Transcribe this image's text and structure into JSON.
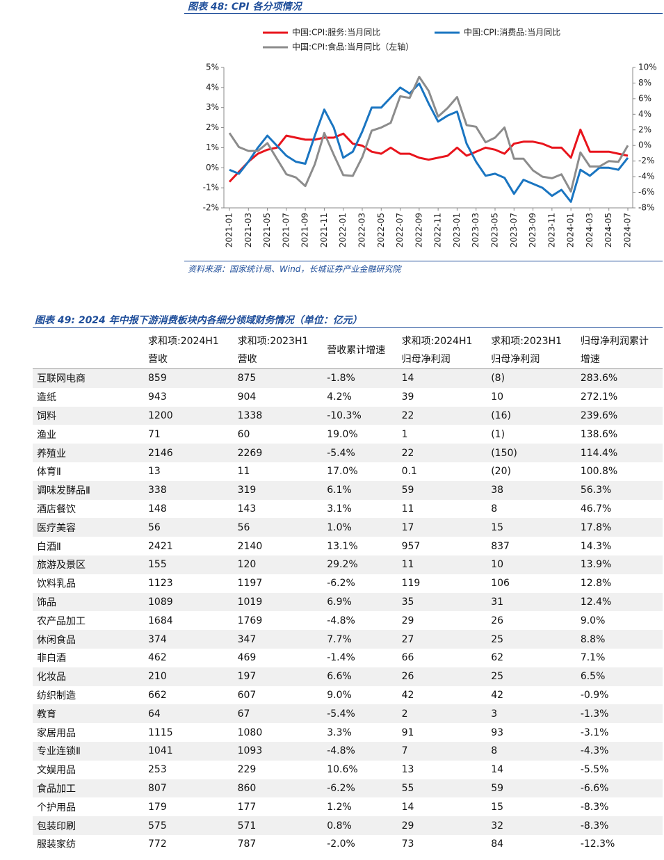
{
  "figure48_title": "图表 48:  CPI 各分项情况",
  "chart_data": {
    "type": "line",
    "categories": [
      "2021-01",
      null,
      "2021-03",
      null,
      "2021-05",
      null,
      "2021-07",
      null,
      "2021-09",
      null,
      "2021-11",
      null,
      "2022-01",
      null,
      "2022-03",
      null,
      "2022-05",
      null,
      "2022-07",
      null,
      "2022-09",
      null,
      "2022-11",
      null,
      "2023-01",
      null,
      "2023-03",
      null,
      "2023-05",
      null,
      "2023-07",
      null,
      "2023-09",
      null,
      "2023-11",
      null,
      "2024-01",
      null,
      "2024-03",
      null,
      "2024-05",
      null,
      "2024-07"
    ],
    "series": [
      {
        "name": "中国:CPI:服务:当月同比",
        "color": "#e8141c",
        "axis": "y",
        "values": [
          -0.7,
          -0.2,
          0.3,
          0.7,
          0.9,
          1.0,
          1.6,
          1.5,
          1.4,
          1.4,
          1.5,
          1.5,
          1.7,
          1.2,
          1.1,
          0.8,
          0.7,
          1.0,
          0.7,
          0.7,
          0.5,
          0.4,
          0.5,
          0.6,
          1.0,
          0.6,
          0.8,
          1.0,
          0.9,
          0.7,
          1.2,
          1.3,
          1.3,
          1.2,
          1.0,
          1.0,
          0.5,
          1.9,
          0.8,
          0.8,
          0.8,
          0.7,
          0.6
        ]
      },
      {
        "name": "中国:CPI:消费品:当月同比",
        "color": "#1a75c1",
        "axis": "y",
        "values": [
          -0.1,
          -0.3,
          0.3,
          1.0,
          1.6,
          1.1,
          0.6,
          0.3,
          0.2,
          1.6,
          2.9,
          2.0,
          0.5,
          0.8,
          1.8,
          3.0,
          3.0,
          3.5,
          4.0,
          3.7,
          4.2,
          3.2,
          2.3,
          2.6,
          2.8,
          1.2,
          0.3,
          -0.4,
          -0.3,
          -0.5,
          -1.3,
          -0.6,
          -0.8,
          -1.0,
          -1.4,
          -1.1,
          -1.7,
          -0.1,
          -0.4,
          0.0,
          0.0,
          -0.1,
          0.5
        ]
      },
      {
        "name": "中国:CPI:食品:当月同比（左轴）",
        "color": "#8c8c8c",
        "axis": "y2",
        "values": [
          1.6,
          -0.2,
          -0.7,
          -0.7,
          0.3,
          -1.7,
          -3.7,
          -4.1,
          -5.2,
          -2.4,
          1.6,
          -1.2,
          -3.8,
          -3.9,
          -1.5,
          1.9,
          2.3,
          2.9,
          6.3,
          6.1,
          8.8,
          7.0,
          3.7,
          4.8,
          6.2,
          2.6,
          2.4,
          0.4,
          1.0,
          2.3,
          -1.7,
          -1.7,
          -3.2,
          -4.0,
          -4.2,
          -3.7,
          -5.9,
          -0.9,
          -2.7,
          -2.7,
          -2.0,
          -2.1,
          0.0
        ]
      }
    ],
    "ylim": [
      -2,
      5
    ],
    "yticks": [
      {
        "value": -2,
        "label": "-2%"
      },
      {
        "value": -1,
        "label": "-1%"
      },
      {
        "value": 0,
        "label": "0%"
      },
      {
        "value": 1,
        "label": "1%"
      },
      {
        "value": 2,
        "label": "2%"
      },
      {
        "value": 3,
        "label": "3%"
      },
      {
        "value": 4,
        "label": "4%"
      },
      {
        "value": 5,
        "label": "5%"
      }
    ],
    "y2lim": [
      -8,
      10
    ],
    "y2ticks": [
      {
        "value": -8,
        "label": "-8%"
      },
      {
        "value": -6,
        "label": "-6%"
      },
      {
        "value": -4,
        "label": "-4%"
      },
      {
        "value": -2,
        "label": "-2%"
      },
      {
        "value": 0,
        "label": "0%"
      },
      {
        "value": 2,
        "label": "2%"
      },
      {
        "value": 4,
        "label": "4%"
      },
      {
        "value": 6,
        "label": "6%"
      },
      {
        "value": 8,
        "label": "8%"
      },
      {
        "value": 10,
        "label": "10%"
      }
    ],
    "grid": false
  },
  "source": "资料来源：国家统计局、Wind，长城证券产业金融研究院",
  "table": {
    "title": "图表 49:  2024 年中报下游消费板块内各细分领域财务情况（单位：亿元）",
    "headers": [
      [
        "求和项:2024H1",
        "营收"
      ],
      [
        "求和项:2023H1",
        "营收"
      ],
      [
        "营收累计增速"
      ],
      [
        "求和项:2024H1",
        "归母净利润"
      ],
      [
        "求和项:2023H1",
        "归母净利润"
      ],
      [
        "归母净利润累计",
        "增速"
      ]
    ],
    "rows": [
      [
        "互联网电商",
        "859",
        "875",
        "-1.8%",
        "14",
        "(8)",
        "283.6%"
      ],
      [
        "造纸",
        "943",
        "904",
        "4.2%",
        "39",
        "10",
        "272.1%"
      ],
      [
        "饲料",
        "1200",
        "1338",
        "-10.3%",
        "22",
        "(16)",
        "239.6%"
      ],
      [
        "渔业",
        "71",
        "60",
        "19.0%",
        "1",
        "(1)",
        "138.6%"
      ],
      [
        "养殖业",
        "2146",
        "2269",
        "-5.4%",
        "22",
        "(150)",
        "114.4%"
      ],
      [
        "体育Ⅱ",
        "13",
        "11",
        "17.0%",
        "0.1",
        "(20)",
        "100.8%"
      ],
      [
        "调味发酵品Ⅱ",
        "338",
        "319",
        "6.1%",
        "59",
        "38",
        "56.3%"
      ],
      [
        "酒店餐饮",
        "148",
        "143",
        "3.1%",
        "11",
        "8",
        "46.7%"
      ],
      [
        "医疗美容",
        "56",
        "56",
        "1.0%",
        "17",
        "15",
        "17.8%"
      ],
      [
        "白酒Ⅱ",
        "2421",
        "2140",
        "13.1%",
        "957",
        "837",
        "14.3%"
      ],
      [
        "旅游及景区",
        "155",
        "120",
        "29.2%",
        "11",
        "10",
        "13.9%"
      ],
      [
        "饮料乳品",
        "1123",
        "1197",
        "-6.2%",
        "119",
        "106",
        "12.8%"
      ],
      [
        "饰品",
        "1089",
        "1019",
        "6.9%",
        "35",
        "31",
        "12.4%"
      ],
      [
        "农产品加工",
        "1684",
        "1769",
        "-4.8%",
        "29",
        "26",
        "9.0%"
      ],
      [
        "休闲食品",
        "374",
        "347",
        "7.7%",
        "27",
        "25",
        "8.8%"
      ],
      [
        "非白酒",
        "462",
        "469",
        "-1.4%",
        "66",
        "62",
        "7.1%"
      ],
      [
        "化妆品",
        "210",
        "197",
        "6.6%",
        "26",
        "25",
        "6.5%"
      ],
      [
        "纺织制造",
        "662",
        "607",
        "9.0%",
        "42",
        "42",
        "-0.9%"
      ],
      [
        "教育",
        "64",
        "67",
        "-5.4%",
        "2",
        "3",
        "-1.3%"
      ],
      [
        "家居用品",
        "1115",
        "1080",
        "3.3%",
        "91",
        "93",
        "-3.1%"
      ],
      [
        "专业连锁Ⅱ",
        "1041",
        "1093",
        "-4.8%",
        "7",
        "8",
        "-4.3%"
      ],
      [
        "文娱用品",
        "253",
        "229",
        "10.6%",
        "13",
        "14",
        "-5.5%"
      ],
      [
        "食品加工",
        "807",
        "860",
        "-6.2%",
        "55",
        "59",
        "-6.6%"
      ],
      [
        "个护用品",
        "179",
        "177",
        "1.2%",
        "14",
        "15",
        "-8.3%"
      ],
      [
        "包装印刷",
        "575",
        "571",
        "0.8%",
        "29",
        "32",
        "-8.3%"
      ],
      [
        "服装家纺",
        "772",
        "787",
        "-2.0%",
        "73",
        "84",
        "-12.3%"
      ]
    ]
  }
}
